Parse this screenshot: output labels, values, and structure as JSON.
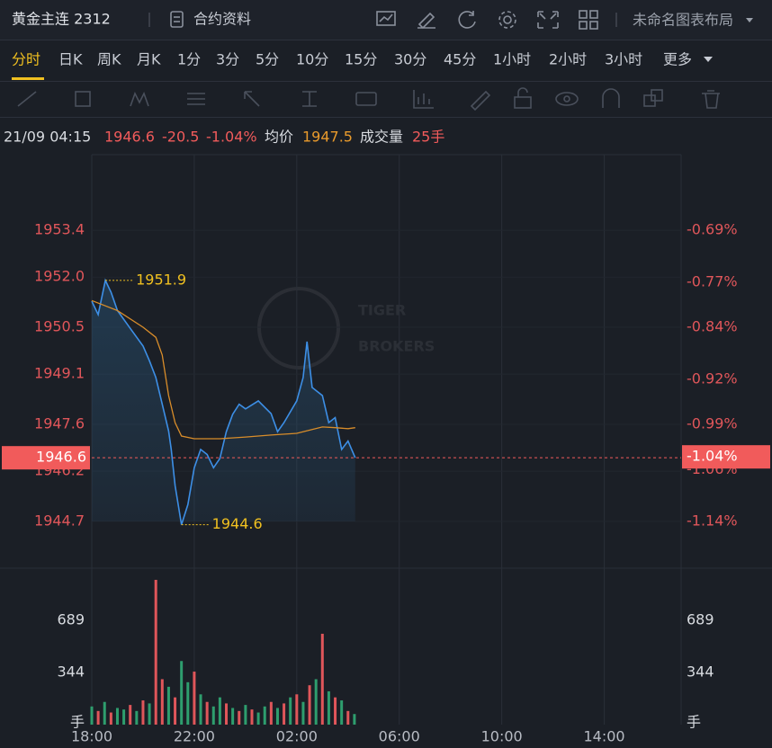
{
  "header": {
    "title": "黄金主连 2312",
    "contract_info": "合约资料",
    "layout_name": "未命名图表布局"
  },
  "timeframes": {
    "items": [
      "分时",
      "日K",
      "周K",
      "月K",
      "1分",
      "3分",
      "5分",
      "10分",
      "15分",
      "30分",
      "45分",
      "1小时",
      "2小时",
      "3小时",
      "更多"
    ],
    "active": 0
  },
  "info": {
    "time": "21/09 04:15",
    "price": "1946.6",
    "change": "-20.5",
    "change_pct": "-1.04%",
    "avg_label": "均价",
    "avg": "1947.5",
    "volume_label": "成交量",
    "volume": "25手"
  },
  "watermark": {
    "line1": "TIGER",
    "line2": "BROKERS"
  },
  "chart_data": {
    "type": "line",
    "xlim": [
      0,
      23
    ],
    "xticks": [
      {
        "value": 0,
        "label": "18:00"
      },
      {
        "value": 4,
        "label": "22:00"
      },
      {
        "value": 8,
        "label": "02:00"
      },
      {
        "value": 12,
        "label": "06:00"
      },
      {
        "value": 16,
        "label": "10:00"
      },
      {
        "value": 20,
        "label": "14:00"
      }
    ],
    "ylim": [
      1943.3,
      1955.66
    ],
    "yticks": [
      1953.4,
      {
        "value": 1952.0,
        "label": "1952.0"
      },
      1950.5,
      1949.1,
      1947.6,
      1946.2,
      1944.7
    ],
    "y2lim": [
      -1.212,
      -0.573
    ],
    "y2ticks": [
      {
        "value": -0.69,
        "label": "-0.69%"
      },
      {
        "value": -0.77,
        "label": "-0.77%"
      },
      {
        "value": -0.84,
        "label": "-0.84%"
      },
      {
        "value": -0.92,
        "label": "-0.92%"
      },
      {
        "value": -0.99,
        "label": "-0.99%"
      },
      {
        "value": -1.06,
        "label": "-1.06%"
      },
      {
        "value": -1.14,
        "label": "-1.14%"
      }
    ],
    "grid": true,
    "series": [
      {
        "color": "#3d8fe6",
        "x": [
          0,
          0.25,
          0.53,
          0.75,
          1,
          1.5,
          2,
          2.25,
          2.5,
          2.75,
          3,
          3.1,
          3.25,
          3.5,
          3.75,
          4,
          4.25,
          4.5,
          4.75,
          5,
          5.25,
          5.5,
          5.75,
          6,
          6.5,
          7,
          7.25,
          7.5,
          8,
          8.25,
          8.4,
          8.6,
          9,
          9.25,
          9.5,
          9.75,
          10,
          10.28
        ],
        "values": [
          1951.28,
          1950.88,
          1951.9,
          1951.55,
          1951.0,
          1950.47,
          1949.94,
          1949.5,
          1949.0,
          1948.2,
          1947.4,
          1946.85,
          1945.77,
          1944.6,
          1945.2,
          1946.3,
          1946.85,
          1946.7,
          1946.3,
          1946.58,
          1947.38,
          1947.9,
          1948.2,
          1948.06,
          1948.3,
          1947.92,
          1947.38,
          1947.65,
          1948.3,
          1949.0,
          1950.07,
          1948.7,
          1948.46,
          1947.65,
          1947.8,
          1946.85,
          1947.1,
          1946.6
        ]
      },
      {
        "color": "#d98d2a",
        "x": [
          0,
          1,
          2,
          2.5,
          2.75,
          3,
          3.25,
          3.5,
          4,
          5,
          6,
          7,
          8,
          9,
          9.5,
          10,
          10.28
        ],
        "values": [
          1951.3,
          1951.0,
          1950.5,
          1950.2,
          1949.67,
          1948.46,
          1947.65,
          1947.25,
          1947.17,
          1947.17,
          1947.22,
          1947.28,
          1947.33,
          1947.52,
          1947.5,
          1947.47,
          1947.5
        ]
      }
    ],
    "annotations": [
      {
        "text": "1951.9",
        "x": 0.53,
        "y": 1951.9
      },
      {
        "text": "1944.6",
        "x": 3.5,
        "y": 1944.6
      }
    ],
    "last": {
      "value": 1946.6,
      "pct": {
        "value": -1.04,
        "label": "-1.04%"
      },
      "color": "#f15b5b"
    },
    "volume": {
      "ylim": [
        0,
        1033
      ],
      "yticks": [
        {
          "value": 0,
          "label": "手"
        },
        344,
        689
      ],
      "x": [
        0,
        0.25,
        0.5,
        0.75,
        1,
        1.25,
        1.5,
        1.75,
        2,
        2.25,
        2.5,
        2.75,
        3,
        3.25,
        3.5,
        3.75,
        4,
        4.25,
        4.5,
        4.75,
        5,
        5.25,
        5.5,
        5.75,
        6,
        6.25,
        6.5,
        6.75,
        7,
        7.25,
        7.5,
        7.75,
        8,
        8.25,
        8.5,
        8.75,
        9,
        9.25,
        9.5,
        9.75,
        10,
        10.25
      ],
      "values": [
        120,
        90,
        150,
        80,
        110,
        100,
        130,
        90,
        160,
        140,
        956,
        300,
        250,
        180,
        420,
        280,
        350,
        200,
        150,
        120,
        180,
        140,
        110,
        90,
        130,
        100,
        80,
        120,
        150,
        110,
        140,
        180,
        200,
        150,
        260,
        300,
        600,
        220,
        180,
        160,
        90,
        70
      ],
      "colors": [
        "#2e9e6e",
        "#e0565a",
        "#2e9e6e",
        "#e0565a",
        "#2e9e6e",
        "#2e9e6e",
        "#e0565a",
        "#2e9e6e",
        "#e0565a",
        "#2e9e6e",
        "#e0565a",
        "#e0565a",
        "#2e9e6e",
        "#e0565a",
        "#2e9e6e",
        "#2e9e6e",
        "#e0565a",
        "#2e9e6e",
        "#e0565a",
        "#2e9e6e",
        "#2e9e6e",
        "#e0565a",
        "#2e9e6e",
        "#e0565a",
        "#2e9e6e",
        "#e0565a",
        "#2e9e6e",
        "#2e9e6e",
        "#e0565a",
        "#2e9e6e",
        "#e0565a",
        "#2e9e6e",
        "#e0565a",
        "#2e9e6e",
        "#e0565a",
        "#2e9e6e",
        "#e0565a",
        "#2e9e6e",
        "#e0565a",
        "#2e9e6e",
        "#e0565a",
        "#2e9e6e"
      ]
    }
  }
}
